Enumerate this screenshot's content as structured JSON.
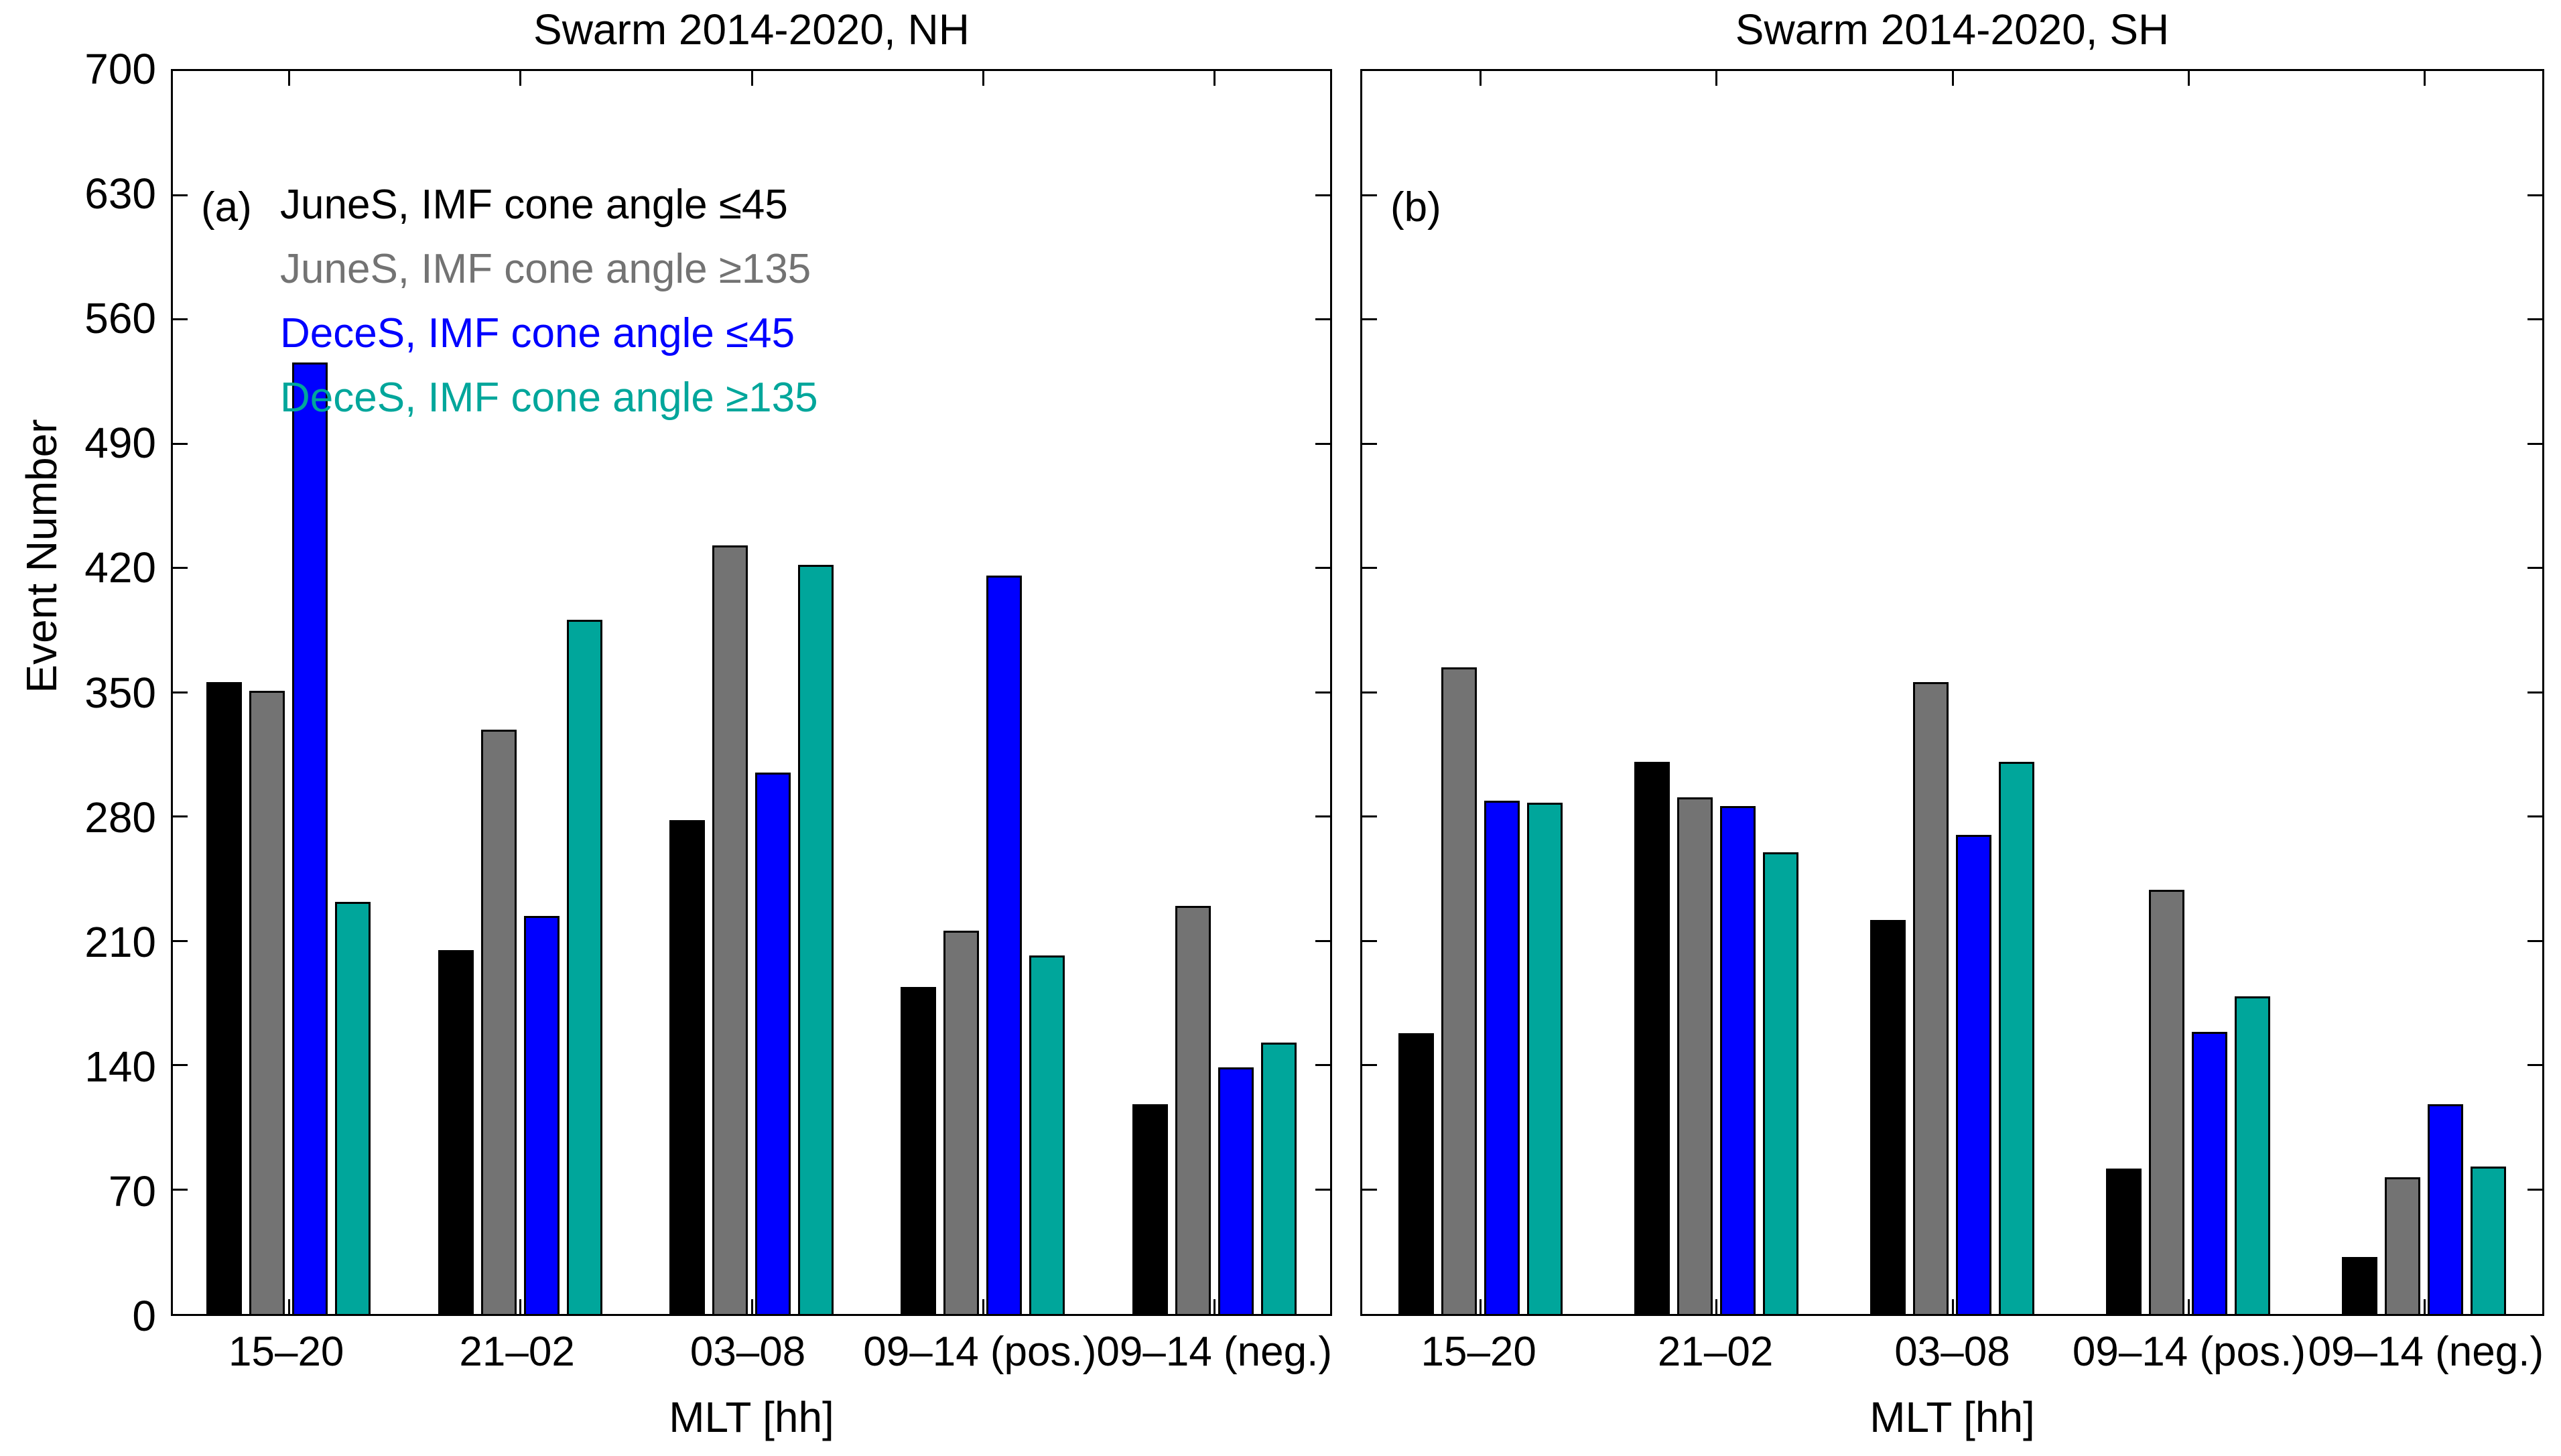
{
  "figure": {
    "ylabel": "Event Number",
    "background": "#ffffff",
    "axis_color": "#000000"
  },
  "legend": {
    "location": "top-left of panel (a)",
    "entries": [
      {
        "label": "JuneS, IMF cone angle ≤45",
        "color": "#000000"
      },
      {
        "label": "JuneS, IMF cone angle ≥135",
        "color": "#737373"
      },
      {
        "label": "DeceS, IMF cone angle ≤45",
        "color": "#0000ff"
      },
      {
        "label": "DeceS, IMF cone angle ≥135",
        "color": "#00a69b"
      }
    ]
  },
  "chart_data": [
    {
      "panel": "a",
      "panel_label": "(a)",
      "type": "bar",
      "title": "Swarm 2014-2020, NH",
      "xlabel": "MLT [hh]",
      "ylabel": "Event Number",
      "ylim": [
        0,
        700
      ],
      "yticks": [
        0,
        70,
        140,
        210,
        280,
        350,
        420,
        490,
        560,
        630,
        700
      ],
      "grid": false,
      "categories": [
        "15–20",
        "21–02",
        "03–08",
        "09–14 (pos.)",
        "09–14 (neg.)"
      ],
      "series": [
        {
          "name": "JuneS, IMF cone angle ≤45",
          "color": "#000000",
          "values": [
            356,
            205,
            278,
            184,
            118
          ]
        },
        {
          "name": "JuneS, IMF cone angle ≥135",
          "color": "#737373",
          "values": [
            351,
            329,
            433,
            216,
            230
          ]
        },
        {
          "name": "DeceS, IMF cone angle ≤45",
          "color": "#0000ff",
          "values": [
            536,
            224,
            305,
            416,
            139
          ]
        },
        {
          "name": "DeceS, IMF cone angle ≥135",
          "color": "#00a69b",
          "values": [
            232,
            391,
            422,
            202,
            153
          ]
        }
      ]
    },
    {
      "panel": "b",
      "panel_label": "(b)",
      "type": "bar",
      "title": "Swarm 2014-2020, SH",
      "xlabel": "MLT [hh]",
      "ylabel": "",
      "ylim": [
        0,
        700
      ],
      "yticks": [
        0,
        70,
        140,
        210,
        280,
        350,
        420,
        490,
        560,
        630,
        700
      ],
      "grid": false,
      "categories": [
        "15–20",
        "21–02",
        "03–08",
        "09–14 (pos.)",
        "09–14 (neg.)"
      ],
      "series": [
        {
          "name": "JuneS, IMF cone angle ≤45",
          "color": "#000000",
          "values": [
            158,
            311,
            222,
            82,
            32
          ]
        },
        {
          "name": "JuneS, IMF cone angle ≥135",
          "color": "#737373",
          "values": [
            364,
            291,
            356,
            239,
            77
          ]
        },
        {
          "name": "DeceS, IMF cone angle ≤45",
          "color": "#0000ff",
          "values": [
            289,
            286,
            270,
            159,
            118
          ]
        },
        {
          "name": "DeceS, IMF cone angle ≥135",
          "color": "#00a69b",
          "values": [
            288,
            260,
            311,
            179,
            83
          ]
        }
      ]
    }
  ]
}
